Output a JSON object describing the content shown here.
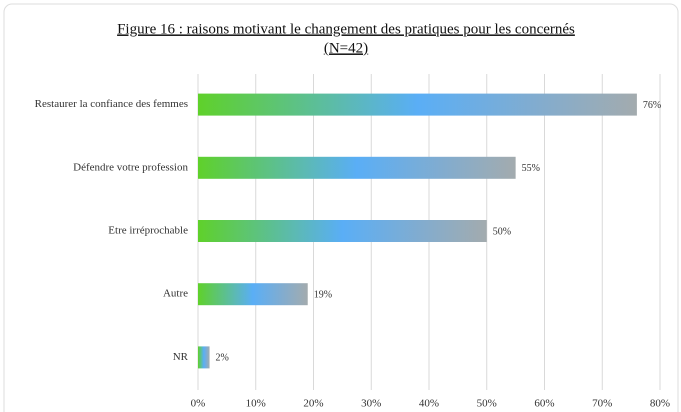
{
  "chart_data": {
    "type": "hbar",
    "title": "Figure 16 : raisons motivant le changement des pratiques pour les concernés",
    "subtitle": "(N=42)",
    "categories": [
      "Restaurer la confiance des femmes",
      "Défendre votre profession",
      "Etre irréprochable",
      "Autre",
      "NR"
    ],
    "values": [
      76,
      55,
      50,
      19,
      2
    ],
    "value_labels": [
      "76%",
      "55%",
      "50%",
      "19%",
      "2%"
    ],
    "colors": [
      "#5fd12a",
      "#5aaef6",
      "#a3abae"
    ],
    "xlim": [
      0,
      80
    ],
    "xticks": [
      {
        "value": 0,
        "label": "0%"
      },
      {
        "value": 10,
        "label": "10%"
      },
      {
        "value": 20,
        "label": "20%"
      },
      {
        "value": 30,
        "label": "30%"
      },
      {
        "value": 40,
        "label": "40%"
      },
      {
        "value": 50,
        "label": "50%"
      },
      {
        "value": 60,
        "label": "60%"
      },
      {
        "value": 70,
        "label": "70%"
      },
      {
        "value": 80,
        "label": "80%"
      }
    ],
    "grid": true
  }
}
